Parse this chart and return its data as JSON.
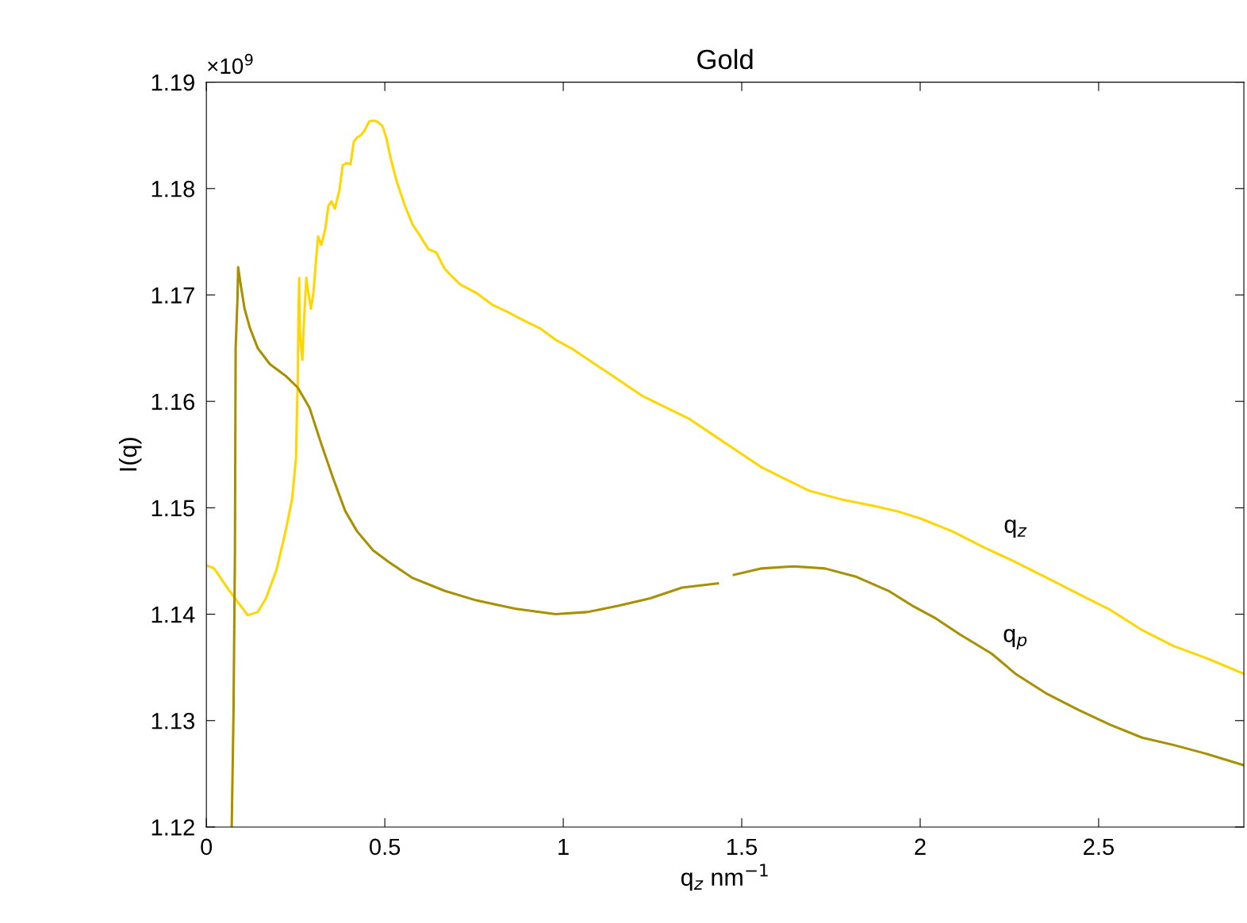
{
  "chart_data": {
    "type": "line",
    "title": "Gold",
    "xlabel": "q$_{z}$ nm$^{−1}$",
    "ylabel": "I(q)",
    "xlim": [
      0,
      2.907
    ],
    "xticks": [
      0,
      0.5,
      1,
      1.5,
      2,
      2.5
    ],
    "ylim": [
      1.12,
      1.19
    ],
    "yticks": [
      1.12,
      1.13,
      1.14,
      1.15,
      1.16,
      1.17,
      1.18,
      1.19
    ],
    "grid": false,
    "legend": false,
    "marker": "none",
    "line_style": "solid",
    "annotations": [
      "×10$^{9}$"
    ],
    "series": [
      {
        "name": "q$_{z}$",
        "color": "#ffd700",
        "x": [
          0,
          0.022,
          0.056,
          0.089,
          0.116,
          0.144,
          0.167,
          0.196,
          0.222,
          0.24,
          0.251,
          0.256,
          0.258,
          0.26,
          0.262,
          0.269,
          0.273,
          0.28,
          0.284,
          0.293,
          0.3,
          0.307,
          0.313,
          0.322,
          0.333,
          0.342,
          0.351,
          0.36,
          0.373,
          0.382,
          0.393,
          0.404,
          0.413,
          0.422,
          0.433,
          0.444,
          0.456,
          0.467,
          0.478,
          0.493,
          0.504,
          0.516,
          0.533,
          0.556,
          0.578,
          0.6,
          0.622,
          0.644,
          0.667,
          0.689,
          0.711,
          0.756,
          0.8,
          0.844,
          0.889,
          0.933,
          0.978,
          1.022,
          1.089,
          1.156,
          1.222,
          1.289,
          1.356,
          1.422,
          1.489,
          1.556,
          1.622,
          1.689,
          1.778,
          1.867,
          1.933,
          2.0,
          2.089,
          2.178,
          2.267,
          2.356,
          2.444,
          2.533,
          2.622,
          2.711,
          2.8,
          2.907
        ],
        "values": [
          1.1446,
          1.1443,
          1.1426,
          1.1411,
          1.1399,
          1.1402,
          1.1415,
          1.1441,
          1.1478,
          1.1508,
          1.1546,
          1.162,
          1.168,
          1.1716,
          1.1665,
          1.1639,
          1.1672,
          1.1716,
          1.1706,
          1.1687,
          1.1702,
          1.1732,
          1.1755,
          1.1747,
          1.1762,
          1.1784,
          1.1788,
          1.1781,
          1.1799,
          1.1822,
          1.1824,
          1.1823,
          1.1844,
          1.1848,
          1.185,
          1.1855,
          1.1863,
          1.1864,
          1.1863,
          1.1859,
          1.1848,
          1.1829,
          1.1807,
          1.1784,
          1.1766,
          1.1755,
          1.1743,
          1.174,
          1.1725,
          1.1717,
          1.171,
          1.1702,
          1.1691,
          1.1684,
          1.1676,
          1.1669,
          1.1658,
          1.165,
          1.1635,
          1.162,
          1.1605,
          1.1594,
          1.1583,
          1.1568,
          1.1553,
          1.1538,
          1.1527,
          1.1516,
          1.1508,
          1.1502,
          1.1497,
          1.149,
          1.1478,
          1.1463,
          1.1449,
          1.1434,
          1.1419,
          1.1404,
          1.1385,
          1.137,
          1.1359,
          1.1344
        ]
      },
      {
        "name": "q$_{p}$",
        "color": "#a89000",
        "x": [
          0.071,
          0.076,
          0.08,
          0.082,
          0.087,
          0.089,
          0.096,
          0.107,
          0.122,
          0.144,
          0.178,
          0.222,
          0.256,
          0.289,
          0.322,
          0.356,
          0.389,
          0.422,
          0.467,
          0.511,
          0.578,
          0.667,
          0.756,
          0.867,
          0.978,
          1.067,
          1.156,
          1.244,
          1.333,
          1.433,
          1.455,
          1.478,
          1.556,
          1.644,
          1.733,
          1.822,
          1.911,
          1.978,
          2.044,
          2.111,
          2.2,
          2.267,
          2.356,
          2.444,
          2.533,
          2.622,
          2.711,
          2.8,
          2.907
        ],
        "values": [
          1.12,
          1.1307,
          1.1456,
          1.165,
          1.1695,
          1.1726,
          1.171,
          1.1687,
          1.1669,
          1.165,
          1.1635,
          1.1624,
          1.1613,
          1.1594,
          1.156,
          1.1527,
          1.1497,
          1.1478,
          1.146,
          1.1449,
          1.1434,
          1.1422,
          1.1413,
          1.1405,
          1.14,
          1.1402,
          1.1408,
          1.1415,
          1.1425,
          1.1429,
          null,
          1.1437,
          1.1443,
          1.1445,
          1.1443,
          1.1435,
          1.1422,
          1.1408,
          1.1396,
          1.1381,
          1.1363,
          1.1344,
          1.1325,
          1.131,
          1.1296,
          1.1284,
          1.1277,
          1.1269,
          1.1258
        ]
      }
    ]
  }
}
